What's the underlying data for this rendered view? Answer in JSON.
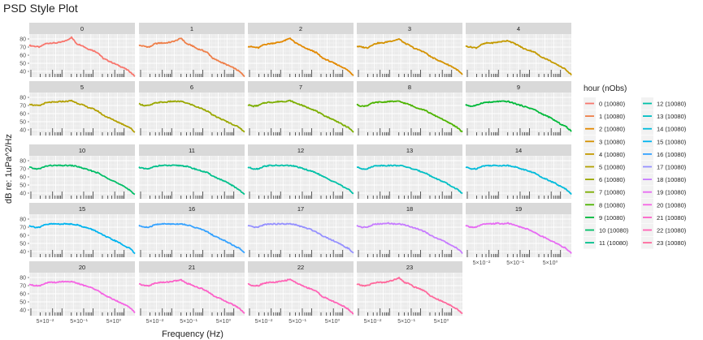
{
  "title": "PSD Style Plot",
  "chart_data": {
    "type": "line",
    "title": "PSD Style Plot",
    "xlabel": "Frequency (Hz)",
    "ylabel": "dB re: 1uPa^2/Hz",
    "x_scale": "log",
    "x_range_hz": [
      10,
      24000
    ],
    "x_tick_labels": [
      "5×10⁻²",
      "5×10⁻¹",
      "5×10⁰"
    ],
    "y_ticks": [
      40,
      50,
      60,
      70,
      80
    ],
    "ylim": [
      33,
      86
    ],
    "grid": true,
    "legend_title": "hour (nObs)",
    "legend_position": "right",
    "series": [
      {
        "facet": "0",
        "legend": "0 (10080)",
        "color": "#F8766D",
        "values": [
          72,
          71,
          70,
          74,
          75,
          75,
          76,
          78,
          82,
          74,
          72,
          68,
          66,
          63,
          56,
          53,
          50,
          47,
          44,
          40,
          34
        ]
      },
      {
        "facet": "1",
        "legend": "1 (10080)",
        "color": "#EF7F49",
        "values": [
          72,
          71,
          70,
          74,
          75,
          75,
          76,
          78,
          81,
          74,
          72,
          68,
          66,
          63,
          56,
          53,
          50,
          47,
          44,
          40,
          34
        ]
      },
      {
        "facet": "2",
        "legend": "2 (10080)",
        "color": "#E38900",
        "values": [
          71,
          70,
          69,
          73,
          74,
          75,
          76,
          78,
          81,
          75,
          72,
          68,
          66,
          63,
          57,
          54,
          51,
          48,
          45,
          41,
          35
        ]
      },
      {
        "facet": "3",
        "legend": "3 (10080)",
        "color": "#D49200",
        "values": [
          71,
          70,
          69,
          73,
          75,
          75,
          77,
          78,
          80,
          75,
          72,
          68,
          66,
          63,
          58,
          55,
          52,
          49,
          46,
          42,
          36
        ]
      },
      {
        "facet": "4",
        "legend": "4 (10080)",
        "color": "#C49A00",
        "values": [
          71,
          70,
          69,
          73,
          75,
          75,
          76,
          77,
          78,
          75,
          72,
          68,
          66,
          64,
          59,
          56,
          53,
          49,
          46,
          42,
          36
        ]
      },
      {
        "facet": "5",
        "legend": "5 (10080)",
        "color": "#B3A000",
        "values": [
          72,
          70,
          70,
          73,
          74,
          74,
          75,
          75,
          76,
          73,
          71,
          68,
          66,
          63,
          58,
          55,
          52,
          49,
          46,
          43,
          37
        ]
      },
      {
        "facet": "6",
        "legend": "6 (10080)",
        "color": "#9AA800",
        "values": [
          72,
          70,
          70,
          73,
          74,
          74,
          75,
          75,
          75,
          73,
          71,
          68,
          66,
          63,
          58,
          55,
          52,
          49,
          46,
          43,
          37
        ]
      },
      {
        "facet": "7",
        "legend": "7 (10080)",
        "color": "#7CAE00",
        "values": [
          71,
          69,
          70,
          73,
          74,
          74,
          75,
          75,
          76,
          73,
          71,
          68,
          66,
          63,
          59,
          56,
          53,
          50,
          46,
          43,
          37
        ]
      },
      {
        "facet": "8",
        "legend": "8 (10080)",
        "color": "#4DB400",
        "values": [
          71,
          69,
          70,
          73,
          74,
          74,
          75,
          75,
          75,
          73,
          71,
          68,
          66,
          64,
          60,
          57,
          54,
          50,
          47,
          43,
          37
        ]
      },
      {
        "facet": "9",
        "legend": "9 (10080)",
        "color": "#00B93A",
        "values": [
          71,
          69,
          70,
          73,
          74,
          74,
          75,
          75,
          75,
          73,
          71,
          69,
          67,
          65,
          61,
          58,
          55,
          51,
          47,
          44,
          38
        ]
      },
      {
        "facet": "10",
        "legend": "10 (10080)",
        "color": "#00BE67",
        "values": [
          72,
          70,
          70,
          73,
          74,
          74,
          74,
          74,
          74,
          73,
          71,
          69,
          67,
          65,
          61,
          58,
          55,
          51,
          48,
          44,
          38
        ]
      },
      {
        "facet": "11",
        "legend": "11 (10080)",
        "color": "#00C08B",
        "values": [
          72,
          70,
          70,
          73,
          74,
          74,
          74,
          74,
          74,
          73,
          71,
          69,
          67,
          65,
          61,
          58,
          55,
          52,
          48,
          44,
          38
        ]
      },
      {
        "facet": "12",
        "legend": "12 (10080)",
        "color": "#00C1A7",
        "values": [
          72,
          70,
          70,
          73,
          74,
          74,
          74,
          74,
          74,
          73,
          71,
          69,
          67,
          65,
          61,
          58,
          55,
          52,
          48,
          45,
          39
        ]
      },
      {
        "facet": "13",
        "legend": "13 (10080)",
        "color": "#00BFC4",
        "values": [
          72,
          70,
          70,
          73,
          74,
          74,
          74,
          74,
          74,
          73,
          71,
          69,
          67,
          65,
          61,
          58,
          55,
          52,
          48,
          45,
          39
        ]
      },
      {
        "facet": "14",
        "legend": "14 (10080)",
        "color": "#00BBDB",
        "values": [
          72,
          70,
          70,
          73,
          74,
          74,
          74,
          74,
          74,
          73,
          71,
          69,
          67,
          65,
          61,
          58,
          55,
          52,
          48,
          45,
          39
        ]
      },
      {
        "facet": "15",
        "legend": "15 (10080)",
        "color": "#00B4EF",
        "values": [
          72,
          70,
          70,
          73,
          74,
          74,
          74,
          74,
          74,
          73,
          71,
          69,
          67,
          64,
          60,
          57,
          54,
          51,
          47,
          44,
          38
        ]
      },
      {
        "facet": "16",
        "legend": "16 (10080)",
        "color": "#35A2FF",
        "values": [
          72,
          70,
          70,
          73,
          74,
          74,
          74,
          74,
          74,
          73,
          71,
          69,
          67,
          64,
          60,
          57,
          54,
          51,
          47,
          44,
          38
        ]
      },
      {
        "facet": "17",
        "legend": "17 (10080)",
        "color": "#9590FF",
        "values": [
          72,
          70,
          70,
          73,
          74,
          74,
          74,
          74,
          74,
          73,
          71,
          69,
          67,
          64,
          60,
          57,
          54,
          51,
          47,
          44,
          38
        ]
      },
      {
        "facet": "18",
        "legend": "18 (10080)",
        "color": "#C77CFF",
        "values": [
          72,
          70,
          70,
          73,
          74,
          74,
          75,
          74,
          74,
          73,
          71,
          69,
          67,
          64,
          60,
          57,
          54,
          51,
          47,
          44,
          38
        ]
      },
      {
        "facet": "19",
        "legend": "19 (10080)",
        "color": "#E76BF3",
        "values": [
          72,
          70,
          70,
          73,
          74,
          74,
          75,
          74,
          75,
          73,
          71,
          69,
          67,
          64,
          60,
          57,
          54,
          51,
          47,
          44,
          38
        ]
      },
      {
        "facet": "20",
        "legend": "20 (10080)",
        "color": "#F564E3",
        "values": [
          72,
          70,
          70,
          73,
          74,
          74,
          75,
          75,
          75,
          73,
          71,
          69,
          67,
          64,
          59,
          56,
          53,
          50,
          47,
          43,
          37
        ]
      },
      {
        "facet": "21",
        "legend": "21 (10080)",
        "color": "#FC61C8",
        "values": [
          72,
          70,
          70,
          73,
          74,
          74,
          75,
          76,
          77,
          73,
          71,
          68,
          66,
          63,
          58,
          55,
          52,
          49,
          46,
          42,
          36
        ]
      },
      {
        "facet": "22",
        "legend": "22 (10080)",
        "color": "#FF63B6",
        "values": [
          72,
          70,
          70,
          73,
          74,
          74,
          75,
          76,
          78,
          74,
          71,
          68,
          66,
          63,
          57,
          54,
          51,
          48,
          45,
          41,
          35
        ]
      },
      {
        "facet": "23",
        "legend": "23 (10080)",
        "color": "#FF699C",
        "values": [
          72,
          70,
          70,
          73,
          74,
          74,
          75,
          77,
          80,
          74,
          72,
          68,
          66,
          63,
          57,
          54,
          51,
          48,
          45,
          41,
          35
        ]
      }
    ]
  }
}
